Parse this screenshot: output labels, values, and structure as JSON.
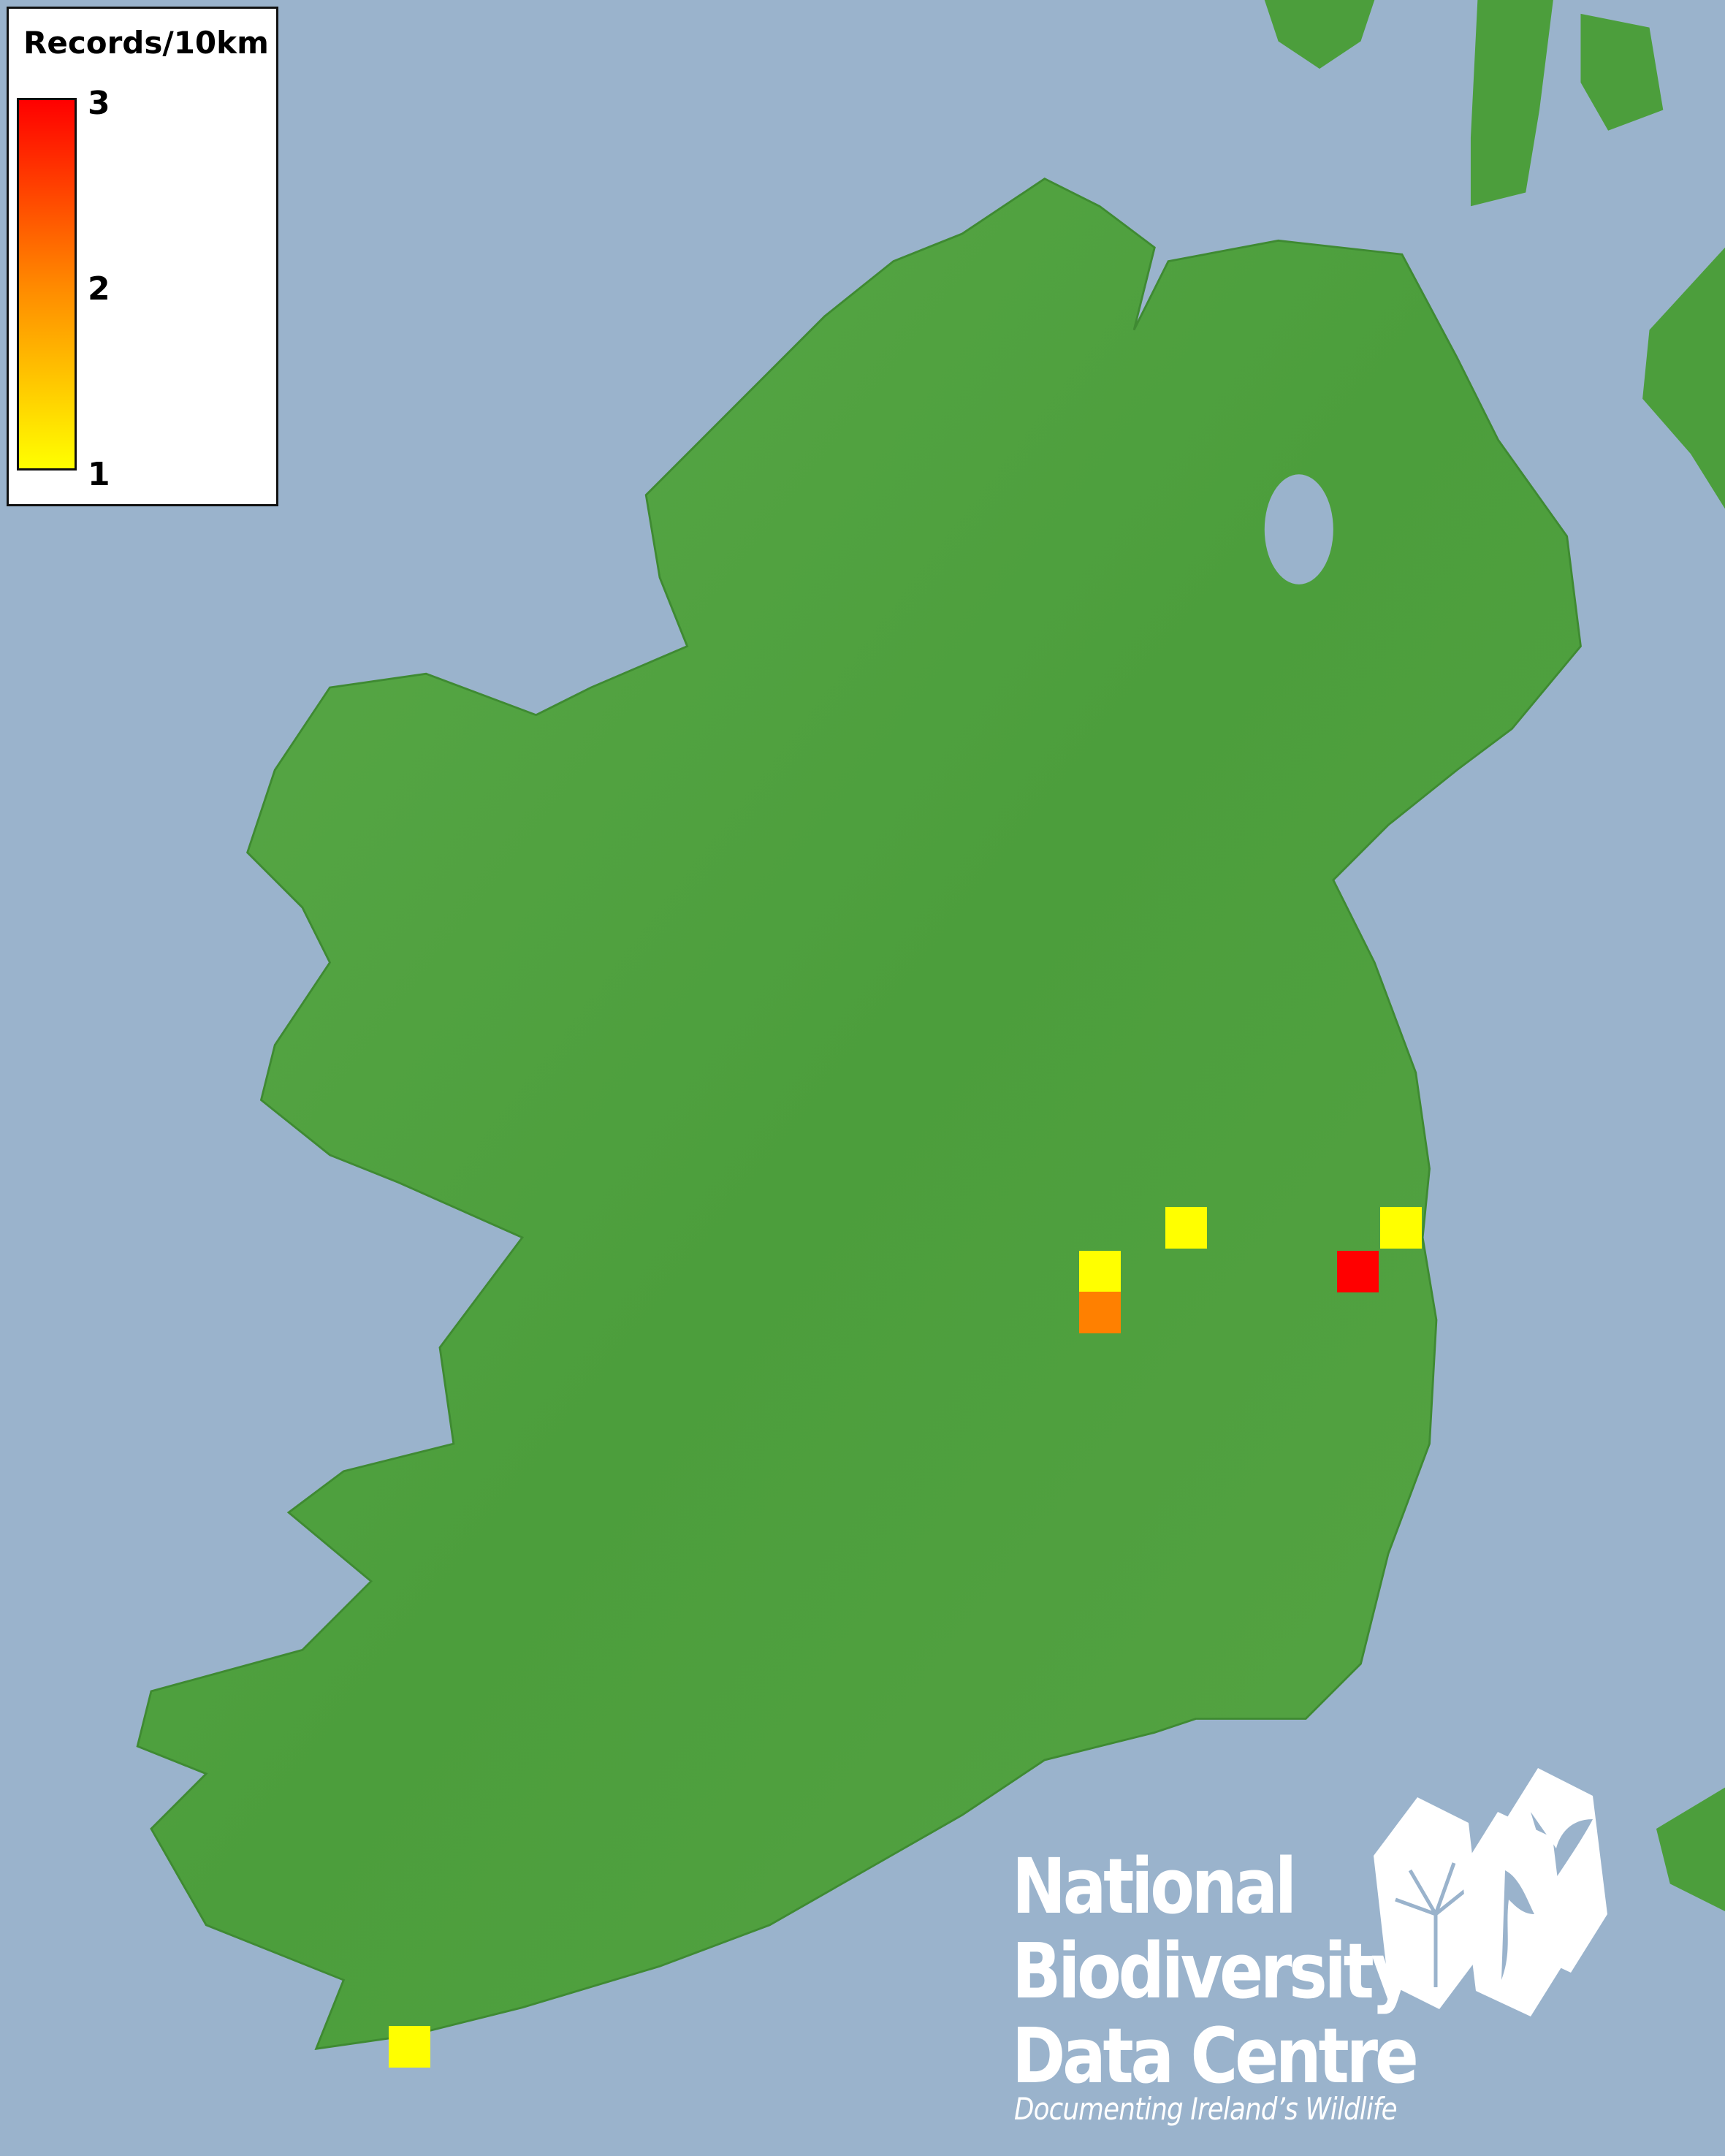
{
  "map": {
    "sea_color": "#9ab3cc",
    "land_color": "#4c9e3c"
  },
  "legend": {
    "title": "Records/10km",
    "ticks": [
      "3",
      "2",
      "1"
    ],
    "scale_min": 1,
    "scale_max": 3,
    "colors": {
      "min": "#ffff00",
      "mid": "#ff8800",
      "max": "#ff0000"
    }
  },
  "records": [
    {
      "count": 1,
      "color": "#ffff00"
    },
    {
      "count": 1,
      "color": "#ffff00"
    },
    {
      "count": 3,
      "color": "#ff0000"
    },
    {
      "count": 1,
      "color": "#ffff00"
    },
    {
      "count": 2,
      "color": "#ff8000"
    },
    {
      "count": 1,
      "color": "#ffff00"
    }
  ],
  "logo": {
    "line1": "National",
    "line2": "Biodiversity",
    "line3": "Data Centre",
    "tagline": "Documenting Ireland’s Wildlife",
    "icons": [
      "tree-icon",
      "butterfly-icon",
      "seahorse-icon"
    ]
  }
}
